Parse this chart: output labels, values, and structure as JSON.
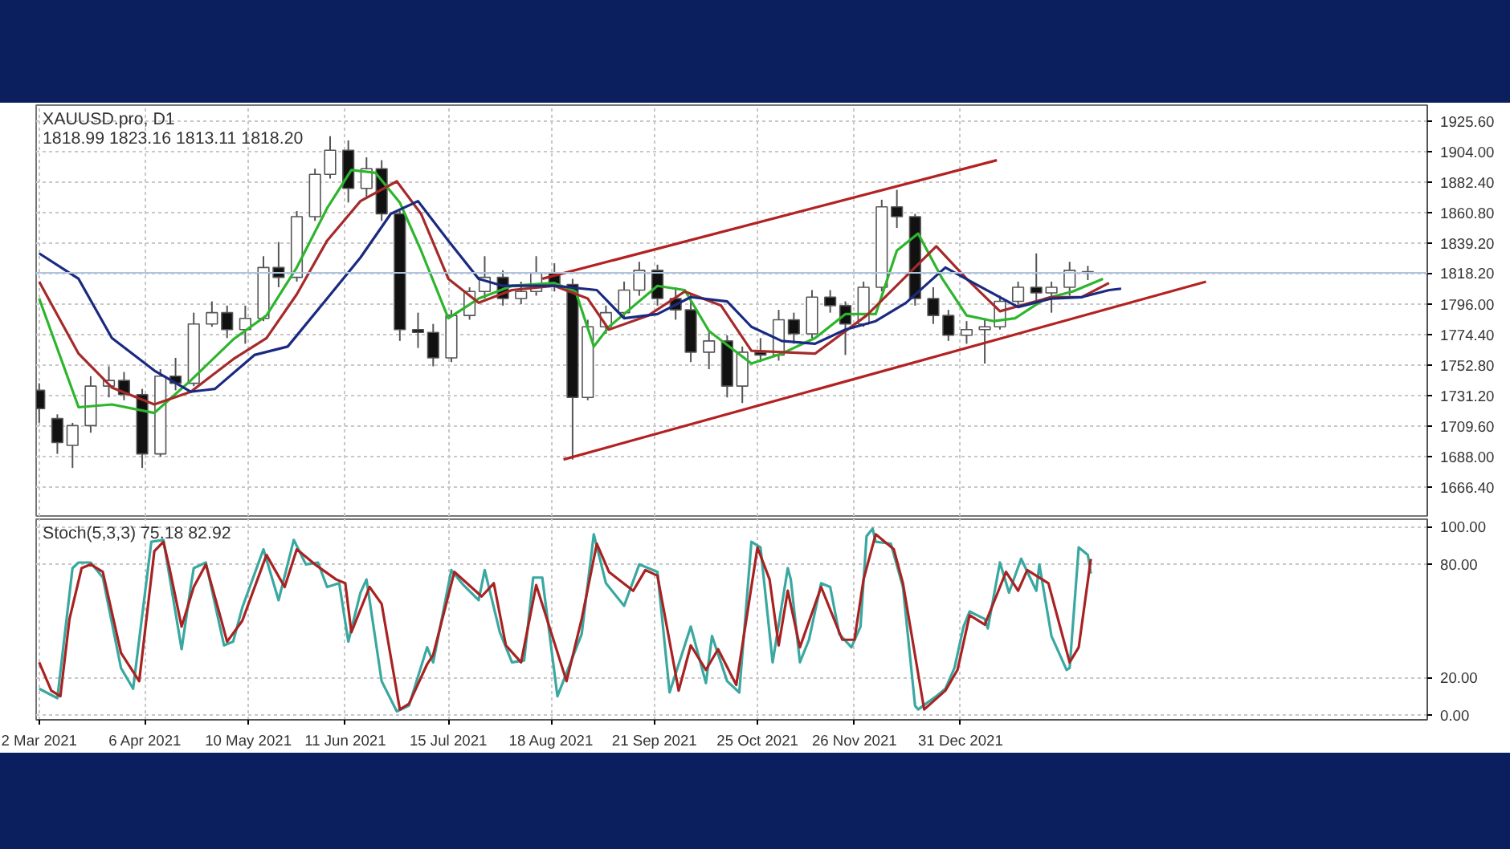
{
  "chart_data": [
    {
      "type": "candlestick",
      "title": "XAUUSD.pro, D1",
      "subtitle": "1818.99 1823.16 1813.11 1818.20",
      "x": [
        "2021-03-02",
        "2021-03-08",
        "2021-03-13",
        "2021-03-19",
        "2021-03-25",
        "2021-03-30",
        "2021-04-05",
        "2021-04-11",
        "2021-04-16",
        "2021-04-22",
        "2021-04-28",
        "2021-05-03",
        "2021-05-09",
        "2021-05-15",
        "2021-05-20",
        "2021-05-26",
        "2021-06-01",
        "2021-06-06",
        "2021-06-12",
        "2021-06-18",
        "2021-06-23",
        "2021-06-29",
        "2021-07-05",
        "2021-07-10",
        "2021-07-16",
        "2021-07-22",
        "2021-07-27",
        "2021-08-02",
        "2021-08-08",
        "2021-08-13",
        "2021-08-19",
        "2021-08-25",
        "2021-08-30",
        "2021-09-05",
        "2021-09-11",
        "2021-09-16",
        "2021-09-22",
        "2021-09-28",
        "2021-10-03",
        "2021-10-09",
        "2021-10-15",
        "2021-10-20",
        "2021-10-26",
        "2021-11-01",
        "2021-11-06",
        "2021-11-12",
        "2021-11-18",
        "2021-11-23",
        "2021-11-29",
        "2021-12-05",
        "2021-12-10",
        "2021-12-16",
        "2021-12-22",
        "2021-12-27",
        "2022-01-02",
        "2022-01-08",
        "2022-01-13",
        "2022-01-19",
        "2022-01-25",
        "2022-01-30",
        "2022-02-05",
        "2022-02-11"
      ],
      "ohlc": [
        [
          1735,
          1740,
          1712,
          1722
        ],
        [
          1715,
          1718,
          1690,
          1698
        ],
        [
          1696,
          1712,
          1680,
          1710
        ],
        [
          1710,
          1745,
          1705,
          1738
        ],
        [
          1738,
          1752,
          1730,
          1742
        ],
        [
          1742,
          1748,
          1728,
          1732
        ],
        [
          1732,
          1736,
          1680,
          1690
        ],
        [
          1690,
          1750,
          1688,
          1745
        ],
        [
          1745,
          1758,
          1735,
          1740
        ],
        [
          1740,
          1790,
          1738,
          1782
        ],
        [
          1782,
          1798,
          1780,
          1790
        ],
        [
          1790,
          1795,
          1772,
          1778
        ],
        [
          1778,
          1795,
          1768,
          1786
        ],
        [
          1786,
          1830,
          1784,
          1822
        ],
        [
          1822,
          1840,
          1808,
          1815
        ],
        [
          1815,
          1862,
          1812,
          1858
        ],
        [
          1858,
          1892,
          1855,
          1888
        ],
        [
          1888,
          1915,
          1885,
          1905
        ],
        [
          1905,
          1912,
          1868,
          1878
        ],
        [
          1878,
          1900,
          1872,
          1892
        ],
        [
          1892,
          1898,
          1855,
          1860
        ],
        [
          1860,
          1862,
          1770,
          1778
        ],
        [
          1778,
          1790,
          1765,
          1776
        ],
        [
          1776,
          1782,
          1752,
          1758
        ],
        [
          1758,
          1792,
          1755,
          1788
        ],
        [
          1788,
          1808,
          1785,
          1805
        ],
        [
          1805,
          1830,
          1800,
          1815
        ],
        [
          1815,
          1820,
          1795,
          1800
        ],
        [
          1800,
          1812,
          1796,
          1805
        ],
        [
          1805,
          1830,
          1802,
          1818
        ],
        [
          1818,
          1825,
          1805,
          1810
        ],
        [
          1810,
          1814,
          1686,
          1730
        ],
        [
          1730,
          1785,
          1728,
          1780
        ],
        [
          1780,
          1795,
          1775,
          1790
        ],
        [
          1790,
          1812,
          1786,
          1806
        ],
        [
          1806,
          1826,
          1802,
          1820
        ],
        [
          1820,
          1824,
          1795,
          1800
        ],
        [
          1800,
          1808,
          1785,
          1792
        ],
        [
          1792,
          1804,
          1755,
          1762
        ],
        [
          1762,
          1776,
          1750,
          1770
        ],
        [
          1770,
          1774,
          1730,
          1738
        ],
        [
          1738,
          1766,
          1726,
          1762
        ],
        [
          1762,
          1772,
          1755,
          1760
        ],
        [
          1760,
          1792,
          1756,
          1785
        ],
        [
          1785,
          1790,
          1768,
          1775
        ],
        [
          1775,
          1806,
          1772,
          1801
        ],
        [
          1801,
          1806,
          1790,
          1795
        ],
        [
          1795,
          1798,
          1760,
          1782
        ],
        [
          1782,
          1812,
          1780,
          1808
        ],
        [
          1808,
          1870,
          1805,
          1865
        ],
        [
          1865,
          1877,
          1850,
          1858
        ],
        [
          1858,
          1860,
          1795,
          1800
        ],
        [
          1800,
          1808,
          1782,
          1788
        ],
        [
          1788,
          1792,
          1770,
          1774
        ],
        [
          1774,
          1784,
          1768,
          1778
        ],
        [
          1778,
          1786,
          1754,
          1780
        ],
        [
          1780,
          1802,
          1778,
          1798
        ],
        [
          1798,
          1812,
          1794,
          1808
        ],
        [
          1808,
          1832,
          1795,
          1804
        ],
        [
          1804,
          1812,
          1790,
          1808
        ],
        [
          1808,
          1826,
          1802,
          1820
        ],
        [
          1818.99,
          1823.16,
          1813.11,
          1818.2
        ]
      ],
      "xlim": [
        "2021-03-01",
        "2022-06-03"
      ],
      "ylim": [
        1646,
        1937
      ],
      "xticks": [
        {
          "value": "2021-03-02",
          "label": null
        },
        {
          "value": "2021-04-06",
          "label": null
        },
        {
          "value": "2021-05-10",
          "label": null
        },
        {
          "value": "2021-06-11",
          "label": null
        },
        {
          "value": "2021-07-15",
          "label": null
        },
        {
          "value": "2021-08-18",
          "label": null
        },
        {
          "value": "2021-09-21",
          "label": null
        },
        {
          "value": "2021-10-25",
          "label": null
        },
        {
          "value": "2021-11-26",
          "label": null
        },
        {
          "value": "2021-12-31",
          "label": null
        }
      ],
      "yticks": [
        {
          "value": 1666.4,
          "label": "1666.40"
        },
        {
          "value": 1688,
          "label": "1688.00"
        },
        {
          "value": 1709.6,
          "label": "1709.60"
        },
        {
          "value": 1731.2,
          "label": "1731.20"
        },
        {
          "value": 1752.8,
          "label": "1752.80"
        },
        {
          "value": 1774.4,
          "label": "1774.40"
        },
        {
          "value": 1796,
          "label": "1796.00"
        },
        {
          "value": 1817.6,
          "label": null
        },
        {
          "value": 1839.2,
          "label": "1839.20"
        },
        {
          "value": 1860.8,
          "label": "1860.80"
        },
        {
          "value": 1882.4,
          "label": "1882.40"
        },
        {
          "value": 1904,
          "label": "1904.00"
        },
        {
          "value": 1925.6,
          "label": "1925.60"
        }
      ],
      "tick_labels": "y",
      "grid": true,
      "ref_lines": [
        {
          "axis": "y",
          "value": 1818.2,
          "label": "1818.20",
          "color": "#b0c4de"
        }
      ],
      "series": [
        {
          "type": "line",
          "color": "#2db52d",
          "x": [
            "2021-03-02",
            "2021-03-15",
            "2021-03-26",
            "2021-04-09",
            "2021-04-21",
            "2021-05-05",
            "2021-05-16",
            "2021-05-26",
            "2021-06-05",
            "2021-06-13",
            "2021-06-21",
            "2021-06-29",
            "2021-07-06",
            "2021-07-15",
            "2021-07-25",
            "2021-08-05",
            "2021-08-19",
            "2021-08-26",
            "2021-09-01",
            "2021-09-06",
            "2021-09-22",
            "2021-10-01",
            "2021-10-09",
            "2021-10-23",
            "2021-11-02",
            "2021-11-13",
            "2021-11-23",
            "2021-12-03",
            "2021-12-10",
            "2021-12-17",
            "2021-12-25",
            "2022-01-02",
            "2022-01-11",
            "2022-01-18",
            "2022-01-28",
            "2022-02-06",
            "2022-02-16"
          ],
          "values": [
            1800,
            1723,
            1725,
            1719,
            1742,
            1771,
            1788,
            1822,
            1864,
            1891,
            1889,
            1868,
            1834,
            1786,
            1800,
            1809,
            1811,
            1805,
            1766,
            1780,
            1809,
            1806,
            1777,
            1754,
            1761,
            1772,
            1789,
            1789,
            1834,
            1846,
            1814,
            1788,
            1784,
            1786,
            1800,
            1805,
            1814
          ]
        },
        {
          "type": "line",
          "color": "#a52a2a",
          "x": [
            "2021-03-02",
            "2021-03-15",
            "2021-03-26",
            "2021-04-09",
            "2021-04-21",
            "2021-05-05",
            "2021-05-16",
            "2021-05-26",
            "2021-06-05",
            "2021-06-16",
            "2021-06-28",
            "2021-07-06",
            "2021-07-15",
            "2021-07-25",
            "2021-08-05",
            "2021-08-19",
            "2021-08-30",
            "2021-09-06",
            "2021-09-19",
            "2021-10-01",
            "2021-10-13",
            "2021-10-23",
            "2021-11-13",
            "2021-11-30",
            "2021-12-23",
            "2022-01-02",
            "2022-01-13",
            "2022-01-30",
            "2022-02-09",
            "2022-02-18"
          ],
          "values": [
            1812,
            1761,
            1737,
            1725,
            1734,
            1757,
            1772,
            1803,
            1841,
            1869,
            1883,
            1860,
            1814,
            1797,
            1806,
            1809,
            1800,
            1778,
            1788,
            1805,
            1795,
            1763,
            1761,
            1788,
            1837,
            1814,
            1791,
            1801,
            1801,
            1811
          ]
        },
        {
          "type": "line",
          "color": "#1a2a80",
          "x": [
            "2021-03-02",
            "2021-03-15",
            "2021-03-26",
            "2021-04-09",
            "2021-04-21",
            "2021-04-29",
            "2021-05-12",
            "2021-05-23",
            "2021-06-05",
            "2021-06-16",
            "2021-06-26",
            "2021-07-05",
            "2021-07-15",
            "2021-07-25",
            "2021-08-02",
            "2021-08-19",
            "2021-09-02",
            "2021-09-11",
            "2021-09-22",
            "2021-10-03",
            "2021-10-15",
            "2021-10-23",
            "2021-11-02",
            "2021-11-13",
            "2021-11-23",
            "2021-12-03",
            "2021-12-13",
            "2021-12-26",
            "2022-01-06",
            "2022-01-19",
            "2022-01-30",
            "2022-02-09",
            "2022-02-18",
            "2022-02-22"
          ],
          "values": [
            1832,
            1814,
            1772,
            1749,
            1734,
            1736,
            1760,
            1766,
            1800,
            1829,
            1860,
            1869,
            1841,
            1814,
            1809,
            1809,
            1806,
            1786,
            1789,
            1801,
            1798,
            1780,
            1770,
            1768,
            1778,
            1784,
            1797,
            1822,
            1809,
            1794,
            1800,
            1801,
            1806,
            1807
          ]
        },
        {
          "type": "line",
          "color": "#b22222",
          "x": [
            "2021-08-15",
            "2022-01-12"
          ],
          "values": [
            1814,
            1898
          ]
        },
        {
          "type": "line",
          "color": "#b22222",
          "x": [
            "2021-08-22",
            "2022-03-22"
          ],
          "values": [
            1686,
            1812
          ]
        }
      ]
    },
    {
      "type": "line",
      "title": "Stoch(5,3,3) 75.18 82.92",
      "xlim": [
        "2021-03-01",
        "2022-06-03"
      ],
      "ylim": [
        -2.5,
        104
      ],
      "xticks": [
        {
          "value": "2021-03-02",
          "label": "2 Mar 2021"
        },
        {
          "value": "2021-04-06",
          "label": "6 Apr 2021"
        },
        {
          "value": "2021-05-10",
          "label": "10 May 2021"
        },
        {
          "value": "2021-06-11",
          "label": "11 Jun 2021"
        },
        {
          "value": "2021-07-15",
          "label": "15 Jul 2021"
        },
        {
          "value": "2021-08-18",
          "label": "18 Aug 2021"
        },
        {
          "value": "2021-09-21",
          "label": "21 Sep 2021"
        },
        {
          "value": "2021-10-25",
          "label": "25 Oct 2021"
        },
        {
          "value": "2021-11-26",
          "label": "26 Nov 2021"
        },
        {
          "value": "2021-12-31",
          "label": "31 Dec 2021"
        }
      ],
      "yticks": [
        {
          "value": 0,
          "label": "0.00"
        },
        {
          "value": 20,
          "label": "20.00"
        },
        {
          "value": 80,
          "label": "80.00"
        },
        {
          "value": 100,
          "label": "100.00"
        }
      ],
      "grid": true,
      "series": [
        {
          "color": "#3aa8a0",
          "x": [
            "2021-03-02",
            "2021-03-08",
            "2021-03-13",
            "2021-03-15",
            "2021-03-19",
            "2021-03-23",
            "2021-03-29",
            "2021-04-02",
            "2021-04-08",
            "2021-04-12",
            "2021-04-18",
            "2021-04-21",
            "2021-04-22",
            "2021-04-26",
            "2021-05-02",
            "2021-05-05",
            "2021-05-08",
            "2021-05-15",
            "2021-05-20",
            "2021-05-25",
            "2021-05-29",
            "2021-06-02",
            "2021-06-05",
            "2021-06-09",
            "2021-06-12",
            "2021-06-16",
            "2021-06-18",
            "2021-06-23",
            "2021-06-28",
            "2021-07-02",
            "2021-07-08",
            "2021-07-10",
            "2021-07-16",
            "2021-07-20",
            "2021-07-25",
            "2021-07-27",
            "2021-08-01",
            "2021-08-05",
            "2021-08-09",
            "2021-08-12",
            "2021-08-15",
            "2021-08-20",
            "2021-08-28",
            "2021-09-01",
            "2021-09-05",
            "2021-09-11",
            "2021-09-16",
            "2021-09-22",
            "2021-09-26",
            "2021-10-03",
            "2021-10-08",
            "2021-10-10",
            "2021-10-15",
            "2021-10-19",
            "2021-10-23",
            "2021-10-26",
            "2021-10-30",
            "2021-11-04",
            "2021-11-05",
            "2021-11-08",
            "2021-11-11",
            "2021-11-15",
            "2021-11-18",
            "2021-11-21",
            "2021-11-25",
            "2021-11-28",
            "2021-11-30",
            "2021-12-02",
            "2021-12-03",
            "2021-12-08",
            "2021-12-12",
            "2021-12-16",
            "2021-12-17",
            "2021-12-23",
            "2021-12-26",
            "2021-12-29",
            "2022-01-01",
            "2022-01-03",
            "2022-01-08",
            "2022-01-09",
            "2022-01-13",
            "2022-01-16",
            "2022-01-20",
            "2022-01-25",
            "2022-01-26",
            "2022-01-30",
            "2022-02-04",
            "2022-02-05",
            "2022-02-08",
            "2022-02-11",
            "2022-02-12"
          ],
          "values": [
            14,
            9,
            78,
            81,
            81,
            73,
            25,
            14,
            92,
            93,
            35,
            68,
            78,
            81,
            37,
            39,
            57,
            88,
            61,
            93,
            80,
            81,
            68,
            70,
            39,
            65,
            72,
            18,
            2,
            5,
            36,
            28,
            77,
            69,
            61,
            77,
            44,
            28,
            29,
            73,
            73,
            10,
            43,
            96,
            70,
            58,
            80,
            76,
            12,
            47,
            17,
            42,
            18,
            12,
            92,
            89,
            28,
            78,
            72,
            28,
            40,
            70,
            68,
            43,
            36,
            47,
            95,
            99,
            92,
            91,
            68,
            5,
            3,
            10,
            14,
            25,
            47,
            55,
            51,
            46,
            81,
            65,
            83,
            66,
            80,
            42,
            24,
            25,
            89,
            85,
            75.18
          ]
        },
        {
          "color": "#a82222",
          "x": [
            "2021-03-02",
            "2021-03-06",
            "2021-03-09",
            "2021-03-12",
            "2021-03-16",
            "2021-03-19",
            "2021-03-23",
            "2021-03-29",
            "2021-04-04",
            "2021-04-09",
            "2021-04-12",
            "2021-04-14",
            "2021-04-18",
            "2021-04-22",
            "2021-04-26",
            "2021-05-01",
            "2021-05-03",
            "2021-05-08",
            "2021-05-16",
            "2021-05-22",
            "2021-05-26",
            "2021-06-01",
            "2021-06-08",
            "2021-06-11",
            "2021-06-13",
            "2021-06-19",
            "2021-06-23",
            "2021-06-29",
            "2021-07-02",
            "2021-07-08",
            "2021-07-10",
            "2021-07-17",
            "2021-07-26",
            "2021-07-30",
            "2021-08-03",
            "2021-08-08",
            "2021-08-13",
            "2021-08-23",
            "2021-08-28",
            "2021-09-02",
            "2021-09-06",
            "2021-09-14",
            "2021-09-18",
            "2021-09-22",
            "2021-09-29",
            "2021-10-03",
            "2021-10-08",
            "2021-10-12",
            "2021-10-18",
            "2021-10-25",
            "2021-10-29",
            "2021-11-01",
            "2021-11-04",
            "2021-11-08",
            "2021-11-15",
            "2021-11-22",
            "2021-11-26",
            "2021-11-29",
            "2021-12-03",
            "2021-12-09",
            "2021-12-12",
            "2021-12-19",
            "2021-12-26",
            "2021-12-30",
            "2022-01-03",
            "2022-01-08",
            "2022-01-15",
            "2022-01-19",
            "2022-01-22",
            "2022-01-29",
            "2022-02-05",
            "2022-02-08",
            "2022-02-12"
          ],
          "values": [
            28,
            13,
            10,
            51,
            78,
            80,
            76,
            33,
            18,
            87,
            92,
            78,
            47,
            68,
            80,
            51,
            39,
            50,
            85,
            68,
            88,
            80,
            72,
            70,
            44,
            68,
            59,
            3,
            6,
            27,
            32,
            76,
            63,
            70,
            37,
            28,
            69,
            18,
            51,
            91,
            76,
            66,
            77,
            74,
            13,
            37,
            24,
            35,
            16,
            89,
            72,
            37,
            66,
            36,
            68,
            40,
            40,
            72,
            96,
            88,
            70,
            3,
            13,
            24,
            53,
            48,
            76,
            66,
            77,
            70,
            28,
            36,
            82.92
          ]
        }
      ]
    }
  ]
}
